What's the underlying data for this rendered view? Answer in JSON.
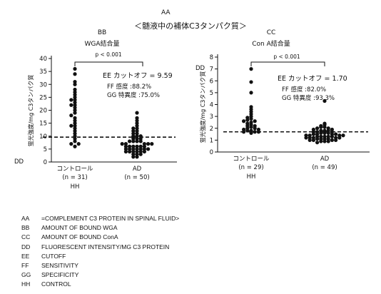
{
  "header": {
    "code": "AA",
    "title": "＜髄液中の補体C3タンパク質＞"
  },
  "chart_data": [
    {
      "type": "scatter",
      "panel_code": "BB",
      "title": "WGA結合量",
      "ylabel": "蛍光強度/mg C3タンパク質",
      "ylabel_code": "DD",
      "ylim": [
        0,
        40
      ],
      "yticks": [
        0,
        5,
        10,
        15,
        20,
        25,
        30,
        35,
        40
      ],
      "categories": [
        {
          "label": "コントロール",
          "n_label": "(n = 31)",
          "code": "HH"
        },
        {
          "label": "AD",
          "n_label": "(n = 50)"
        }
      ],
      "series": [
        {
          "values": [
            36,
            34,
            31,
            30,
            28,
            27,
            26,
            25,
            24,
            24,
            23,
            22,
            22,
            21,
            20,
            19,
            18,
            17,
            16,
            15,
            14,
            14,
            13,
            12,
            11,
            10,
            9,
            8,
            7,
            7,
            6
          ]
        },
        {
          "values": [
            19,
            17,
            16,
            15,
            14,
            13,
            13,
            12,
            12,
            11,
            11,
            10,
            10,
            10,
            9,
            9,
            9,
            8,
            8,
            8,
            8,
            7,
            7,
            7,
            7,
            7,
            6,
            6,
            6,
            6,
            6,
            6,
            5,
            5,
            5,
            5,
            5,
            5,
            5,
            4,
            4,
            4,
            4,
            4,
            4,
            3,
            3,
            3,
            2,
            2
          ]
        }
      ],
      "cutoff": 9.59,
      "pvalue": "p < 0.001",
      "annotations": {
        "cutoff_code": "EE",
        "cutoff_label": "カットオフ",
        "cutoff_text": "= 9.59",
        "sens_code": "FF",
        "sens_label": "感度",
        "sens_value": ":88.2%",
        "spec_code": "GG",
        "spec_label": "特異度",
        "spec_value": ":75.0%"
      }
    },
    {
      "type": "scatter",
      "panel_code": "CC",
      "title": "Con A結合量",
      "ylabel": "蛍光強度/mg C3タンパク質",
      "ylabel_code": "DD",
      "ylim": [
        0,
        8
      ],
      "yticks": [
        0,
        1,
        2,
        3,
        4,
        5,
        6,
        7,
        8
      ],
      "categories": [
        {
          "label": "コントロール",
          "n_label": "(n = 29)",
          "code": "HH"
        },
        {
          "label": "AD",
          "n_label": "(n = 49)"
        }
      ],
      "series": [
        {
          "values": [
            7.0,
            5.9,
            5.0,
            3.8,
            3.6,
            3.4,
            3.2,
            3.0,
            2.9,
            2.8,
            2.7,
            2.6,
            2.6,
            2.5,
            2.4,
            2.3,
            2.2,
            2.2,
            2.1,
            2.0,
            2.0,
            1.9,
            1.9,
            1.8,
            1.8,
            1.7,
            1.7,
            1.7,
            1.6
          ]
        },
        {
          "values": [
            4.3,
            2.4,
            2.3,
            2.2,
            2.1,
            2.1,
            2.0,
            2.0,
            1.9,
            1.9,
            1.8,
            1.8,
            1.8,
            1.7,
            1.7,
            1.7,
            1.6,
            1.6,
            1.6,
            1.5,
            1.5,
            1.5,
            1.5,
            1.4,
            1.4,
            1.4,
            1.4,
            1.3,
            1.3,
            1.3,
            1.3,
            1.3,
            1.2,
            1.2,
            1.2,
            1.2,
            1.2,
            1.1,
            1.1,
            1.1,
            1.1,
            1.0,
            1.0,
            1.0,
            1.0,
            0.9,
            0.9,
            0.9,
            0.8
          ]
        }
      ],
      "cutoff": 1.7,
      "pvalue": "p < 0.001",
      "annotations": {
        "cutoff_code": "EE",
        "cutoff_label": "カットオフ",
        "cutoff_text": "= 1.70",
        "sens_code": "FF",
        "sens_label": "感度",
        "sens_value": ":82.0%",
        "spec_code": "GG",
        "spec_label": "特異度",
        "spec_value": ":93.3%"
      }
    }
  ],
  "legend": [
    {
      "key": "AA",
      "text": "=COMPLEMENT C3 PROTEIN IN SPINAL FLUID>"
    },
    {
      "key": "BB",
      "text": "AMOUNT OF BOUND WGA"
    },
    {
      "key": "CC",
      "text": "AMOUNT OF BOUND ConA"
    },
    {
      "key": "DD",
      "text": "FLUORESCENT INTENSITY/MG C3 PROTEIN"
    },
    {
      "key": "EE",
      "text": "CUTOFF"
    },
    {
      "key": "FF",
      "text": "SENSITIVITY"
    },
    {
      "key": "GG",
      "text": "SPECIFICITY"
    },
    {
      "key": "HH",
      "text": "CONTROL"
    }
  ]
}
